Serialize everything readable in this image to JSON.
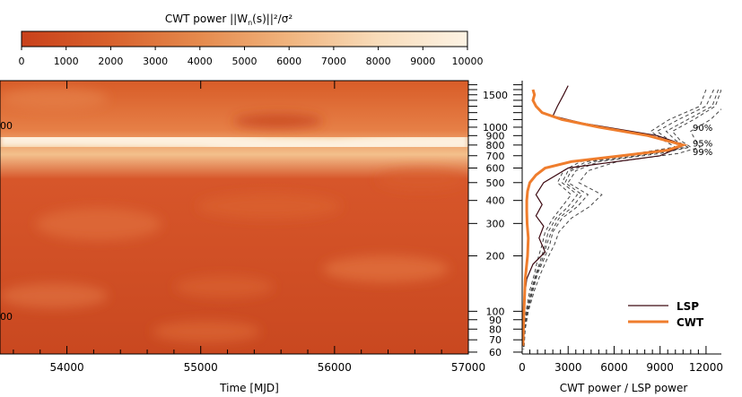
{
  "chart_data": [
    {
      "type": "heatmap",
      "colorbar": {
        "title_prefix": "CWT power  ||W",
        "title_sub": "n",
        "title_suffix": "(s)||²/σ²",
        "ticks": [
          0,
          1000,
          2000,
          3000,
          4000,
          5000,
          6000,
          7000,
          8000,
          9000,
          10000
        ],
        "range": [
          0,
          10000
        ],
        "colors": [
          "#c9411b",
          "#d8612c",
          "#e58a4d",
          "#f0b47e",
          "#f8dcba",
          "#fdf3e4"
        ]
      },
      "xlabel": "Time [MJD]",
      "xticks": [
        54000,
        55000,
        56000,
        57000
      ],
      "xlim": [
        53500,
        57000
      ],
      "ylabel": "",
      "left_tick_labels": [
        "00",
        "00"
      ],
      "ridge": {
        "description_free_samples_x": [
          53500,
          54000,
          54500,
          55000,
          55500,
          56000,
          56500,
          57000
        ],
        "period_days": [
          870,
          870,
          860,
          850,
          800,
          790,
          820,
          830
        ],
        "peak_power": 10000
      }
    },
    {
      "type": "line",
      "xlabel": "CWT power / LSP power",
      "xticks": [
        0,
        3000,
        6000,
        9000,
        12000
      ],
      "xlim": [
        0,
        13000
      ],
      "ylabel": "",
      "yscale": "log",
      "ylim": [
        60,
        1700
      ],
      "yticks_labeled": [
        1500,
        1000,
        900,
        800,
        700,
        600,
        500,
        400,
        300,
        200,
        100,
        90,
        80,
        70,
        60
      ],
      "yticks_all": [
        1700,
        1600,
        1500,
        1400,
        1300,
        1200,
        1100,
        1000,
        900,
        800,
        700,
        600,
        500,
        400,
        300,
        200,
        100,
        90,
        80,
        70,
        60
      ],
      "legend_position": "bottom-right",
      "series": [
        {
          "name": "LSP",
          "color": "#3d0a12",
          "period": [
            1680,
            1500,
            1300,
            1150,
            1050,
            900,
            800,
            700,
            600,
            500,
            430,
            380,
            330,
            290,
            250,
            210,
            180,
            150,
            120,
            100,
            80,
            65
          ],
          "power": [
            3000,
            2700,
            2300,
            2000,
            4000,
            8800,
            10600,
            9000,
            3000,
            1400,
            900,
            1300,
            900,
            1400,
            1100,
            1500,
            700,
            300,
            150,
            80,
            40,
            20
          ]
        },
        {
          "name": "CWT",
          "color": "#ef7d2d",
          "period": [
            1600,
            1500,
            1400,
            1300,
            1200,
            1100,
            1000,
            900,
            800,
            750,
            700,
            650,
            600,
            550,
            500,
            450,
            400,
            350,
            300,
            250,
            200,
            150,
            100,
            80,
            65
          ],
          "power": [
            700,
            800,
            700,
            900,
            1300,
            2600,
            5000,
            8200,
            10500,
            9500,
            6500,
            3200,
            1500,
            900,
            500,
            350,
            300,
            300,
            320,
            400,
            350,
            200,
            120,
            80,
            50
          ]
        }
      ],
      "significance": [
        {
          "label": "90%",
          "anchor_period": 1000,
          "anchor_power": 12300
        },
        {
          "label": "95%",
          "anchor_period": 820,
          "anchor_power": 12300
        },
        {
          "label": "99%",
          "anchor_period": 740,
          "anchor_power": 12300
        }
      ]
    }
  ]
}
